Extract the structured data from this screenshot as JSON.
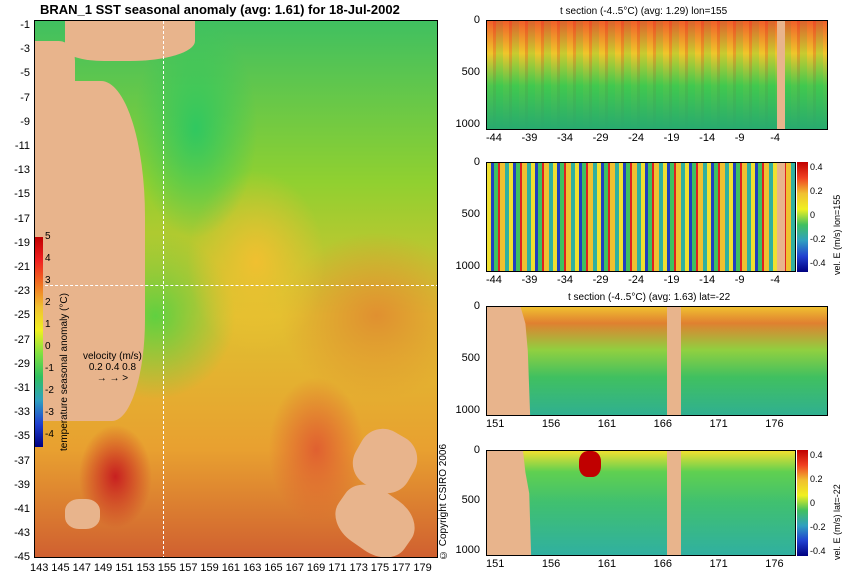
{
  "map": {
    "title": "BRAN_1 SST seasonal anomaly (avg: 1.61) for 18-Jul-2002",
    "y_ticks": [
      "-1",
      "-3",
      "-5",
      "-7",
      "-9",
      "-11",
      "-13",
      "-15",
      "-17",
      "-19",
      "-21",
      "-23",
      "-25",
      "-27",
      "-29",
      "-31",
      "-33",
      "-35",
      "-37",
      "-39",
      "-41",
      "-43",
      "-45"
    ],
    "x_ticks": [
      "143",
      "145",
      "147",
      "149",
      "151",
      "153",
      "155",
      "157",
      "159",
      "161",
      "163",
      "165",
      "167",
      "169",
      "171",
      "173",
      "175",
      "177",
      "179"
    ],
    "colorbar": {
      "label": "temperature seasonal anomaly (°C)",
      "ticks": [
        "5",
        "4",
        "3",
        "2",
        "1",
        "0",
        "-1",
        "-2",
        "-3",
        "-4"
      ],
      "colors": [
        "#c00000",
        "#f02020",
        "#f07020",
        "#f0c030",
        "#f0f020",
        "#80e040",
        "#30c060",
        "#30a0c0",
        "#2040d0",
        "#000080"
      ]
    },
    "velocity_legend": {
      "title": "velocity (m/s)",
      "values": "0.2 0.4 0.8"
    },
    "copyright": "© Copyright CSIRO 2006"
  },
  "panels": [
    {
      "title": "t section (-4..5°C) (avg: 1.29) lon=155",
      "y_ticks": [
        "0",
        "500",
        "1000"
      ],
      "x_ticks": [
        "-44",
        "-39",
        "-34",
        "-29",
        "-24",
        "-19",
        "-14",
        "-9",
        "-4"
      ]
    },
    {
      "title": "",
      "y_ticks": [
        "0",
        "500",
        "1000"
      ],
      "x_ticks": [
        "-44",
        "-39",
        "-34",
        "-29",
        "-24",
        "-19",
        "-14",
        "-9",
        "-4"
      ],
      "colorbar_label": "vel. E (m/s) lon=155",
      "colorbar_ticks": [
        "0.4",
        "0.2",
        "0",
        "-0.2",
        "-0.4"
      ]
    },
    {
      "title": "t section (-4..5°C) (avg: 1.63) lat=-22",
      "y_ticks": [
        "0",
        "500",
        "1000"
      ],
      "x_ticks": [
        "151",
        "156",
        "161",
        "166",
        "171",
        "176"
      ]
    },
    {
      "title": "",
      "y_ticks": [
        "0",
        "500",
        "1000"
      ],
      "x_ticks": [
        "151",
        "156",
        "161",
        "166",
        "171",
        "176"
      ],
      "colorbar_label": "vel. E (m/s) lat=-22",
      "colorbar_ticks": [
        "0.4",
        "0.2",
        "0",
        "-0.2",
        "-0.4"
      ]
    }
  ]
}
